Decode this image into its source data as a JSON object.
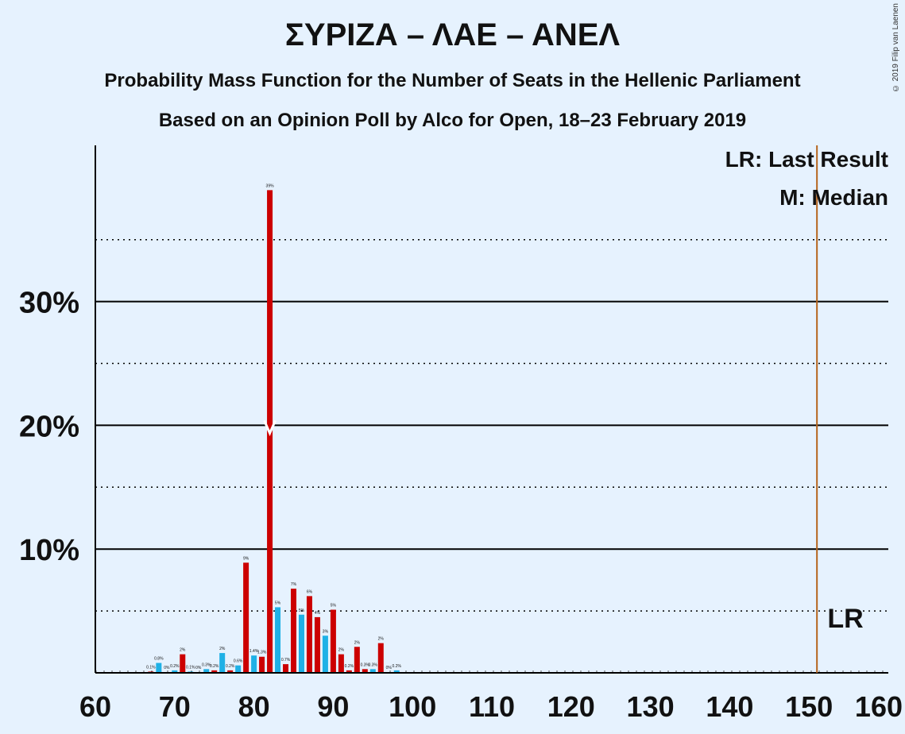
{
  "header": {
    "title": "ΣΥΡΙΖΑ – ΛΑΕ – ΑΝΕΛ",
    "subtitle1": "Probability Mass Function for the Number of Seats in the Hellenic Parliament",
    "subtitle2": "Based on an Opinion Poll by Alco for Open, 18–23 February 2019",
    "copyright": "© 2019 Filip van Laenen"
  },
  "colors": {
    "background": "#e6f2fe",
    "bar_red": "#cc0000",
    "bar_cyan": "#1fb1e6",
    "last_result_line": "#b5651d",
    "axis": "#000000"
  },
  "chart_data": {
    "type": "bar",
    "title": "ΣΥΡΙΖΑ – ΛΑΕ – ΑΝΕΛ",
    "xlabel": "",
    "ylabel": "",
    "xlim": [
      60,
      160
    ],
    "ylim": [
      0,
      42
    ],
    "x_ticks": [
      "60",
      "70",
      "80",
      "90",
      "100",
      "110",
      "120",
      "130",
      "140",
      "150",
      "160"
    ],
    "y_ticks": [
      {
        "value": 10,
        "label": "10%"
      },
      {
        "value": 20,
        "label": "20%"
      },
      {
        "value": 30,
        "label": "30%"
      }
    ],
    "dotted_grid": [
      5,
      15,
      25,
      35
    ],
    "legend": [
      "LR: Last Result",
      "M: Median"
    ],
    "last_result": {
      "seats": 151,
      "label": "LR"
    },
    "median": {
      "seats": 82,
      "label": "M"
    },
    "series": [
      {
        "seats": 67,
        "value": 0.1,
        "label": "0.1%"
      },
      {
        "seats": 68,
        "value": 0.8,
        "label": "0.8%"
      },
      {
        "seats": 69,
        "value": 0.05,
        "label": "0%"
      },
      {
        "seats": 70,
        "value": 0.2,
        "label": "0.2%"
      },
      {
        "seats": 71,
        "value": 1.5,
        "label": "2%"
      },
      {
        "seats": 72,
        "value": 0.1,
        "label": "0.1%"
      },
      {
        "seats": 73,
        "value": 0.05,
        "label": "0%"
      },
      {
        "seats": 74,
        "value": 0.3,
        "label": "0.3%"
      },
      {
        "seats": 75,
        "value": 0.2,
        "label": "0.2%"
      },
      {
        "seats": 76,
        "value": 1.6,
        "label": "2%"
      },
      {
        "seats": 77,
        "value": 0.2,
        "label": "0.2%"
      },
      {
        "seats": 78,
        "value": 0.6,
        "label": "0.6%"
      },
      {
        "seats": 79,
        "value": 8.9,
        "label": "9%"
      },
      {
        "seats": 80,
        "value": 1.4,
        "label": "1.4%"
      },
      {
        "seats": 81,
        "value": 1.3,
        "label": "1.3%"
      },
      {
        "seats": 82,
        "value": 39,
        "label": "39%"
      },
      {
        "seats": 83,
        "value": 5.3,
        "label": "5%"
      },
      {
        "seats": 84,
        "value": 0.7,
        "label": "0.7%"
      },
      {
        "seats": 85,
        "value": 6.8,
        "label": "7%"
      },
      {
        "seats": 86,
        "value": 4.7,
        "label": "5%"
      },
      {
        "seats": 87,
        "value": 6.2,
        "label": "6%"
      },
      {
        "seats": 88,
        "value": 4.5,
        "label": "4%"
      },
      {
        "seats": 89,
        "value": 3.0,
        "label": "3%"
      },
      {
        "seats": 90,
        "value": 5.1,
        "label": "5%"
      },
      {
        "seats": 91,
        "value": 1.5,
        "label": "2%"
      },
      {
        "seats": 92,
        "value": 0.2,
        "label": "0.2%"
      },
      {
        "seats": 93,
        "value": 2.1,
        "label": "2%"
      },
      {
        "seats": 94,
        "value": 0.3,
        "label": "0.3%"
      },
      {
        "seats": 95,
        "value": 0.3,
        "label": "0.3%"
      },
      {
        "seats": 96,
        "value": 2.4,
        "label": "2%"
      },
      {
        "seats": 97,
        "value": 0.05,
        "label": "0%"
      },
      {
        "seats": 98,
        "value": 0.2,
        "label": "0.2%"
      }
    ]
  }
}
